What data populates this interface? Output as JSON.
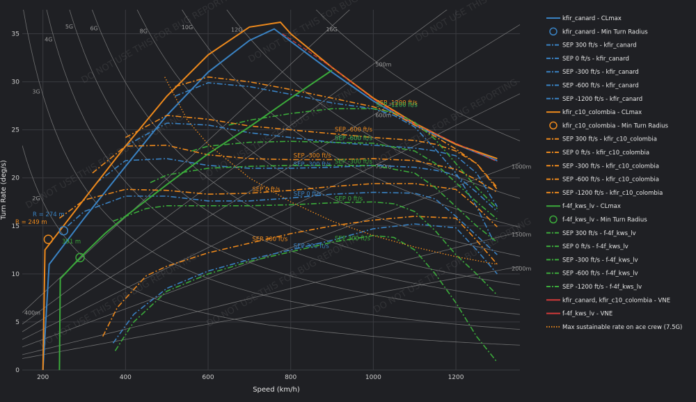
{
  "chart_data": {
    "type": "line",
    "xlabel": "Speed (km/h)",
    "ylabel": "Turn Rate (deg/s)",
    "xlim": [
      150,
      1355
    ],
    "ylim": [
      0,
      37.5
    ],
    "xticks": [
      200,
      400,
      600,
      800,
      1000,
      1200
    ],
    "yticks": [
      0,
      5,
      10,
      15,
      20,
      25,
      30,
      35
    ],
    "grid": true,
    "legend_position": "right",
    "watermark": "DO NOT USE THIS FOR BUG REPORTING",
    "g_lines": [
      {
        "label": "2G",
        "g": 2
      },
      {
        "label": "3G",
        "g": 3
      },
      {
        "label": "4G",
        "g": 4
      },
      {
        "label": "5G",
        "g": 5
      },
      {
        "label": "6G",
        "g": 6
      },
      {
        "label": "8G",
        "g": 8
      },
      {
        "label": "10G",
        "g": 10
      },
      {
        "label": "12G",
        "g": 12
      },
      {
        "label": "16G",
        "g": 16
      }
    ],
    "radius_lines": [
      {
        "label": "400m",
        "r": 400
      },
      {
        "label": "500m",
        "r": 500
      },
      {
        "label": "600m",
        "r": 600
      },
      {
        "label": "750m",
        "r": 750
      },
      {
        "label": "1000m",
        "r": 1000
      },
      {
        "label": "1500m",
        "r": 1500
      },
      {
        "label": "2000m",
        "r": 2000
      }
    ],
    "aircraft": [
      {
        "name": "kfir_canard",
        "color": "#3a83c4",
        "clmax": {
          "x": [
            200,
            215,
            300,
            400,
            500,
            600,
            700,
            760,
            800,
            900,
            1000,
            1100,
            1200,
            1300
          ],
          "y": [
            0,
            11.0,
            15.8,
            21.2,
            26.5,
            31.0,
            34.3,
            35.5,
            34.2,
            31.0,
            28.0,
            25.5,
            23.5,
            21.8
          ]
        },
        "min_turn": {
          "speed": 250,
          "rate": 14.5,
          "label": "R = 274 m"
        },
        "sep": [
          {
            "label": "SEP 300 ft/s",
            "x": [
              370,
              420,
              500,
              600,
              700,
              800,
              900,
              1000,
              1100,
              1200,
              1250,
              1300
            ],
            "y": [
              2.8,
              5.8,
              8.5,
              10.3,
              11.5,
              12.5,
              13.5,
              14.7,
              15.2,
              14.8,
              12.5,
              10.0
            ]
          },
          {
            "label": "SEP 0 ft/s",
            "x": [
              260,
              300,
              400,
              500,
              600,
              700,
              800,
              900,
              1000,
              1100,
              1150,
              1200,
              1250,
              1300
            ],
            "y": [
              15.0,
              16.5,
              18.1,
              18.1,
              17.6,
              17.6,
              17.9,
              18.3,
              18.5,
              18.4,
              17.8,
              16.0,
              14.0,
              12.0
            ]
          },
          {
            "label": "SEP -300 ft/s",
            "x": [
              330,
              400,
              500,
              600,
              700,
              800,
              900,
              1000,
              1100,
              1150,
              1200,
              1250,
              1300
            ],
            "y": [
              19.5,
              21.8,
              22.0,
              21.3,
              21.0,
              21.0,
              21.1,
              21.3,
              21.1,
              20.8,
              20.3,
              18.5,
              16.5
            ]
          },
          {
            "label": "SEP -600 ft/s",
            "x": [
              400,
              500,
              600,
              700,
              800,
              900,
              1000,
              1100,
              1150,
              1200,
              1250,
              1300
            ],
            "y": [
              23.3,
              25.7,
              25.5,
              24.7,
              24.2,
              23.7,
              23.4,
              23.1,
              22.8,
              22.3,
              20.5,
              17.0
            ]
          },
          {
            "label": "SEP -1200 ft/s",
            "x": [
              520,
              600,
              700,
              800,
              900,
              1000,
              1050,
              1100,
              1150,
              1200,
              1250,
              1290
            ],
            "y": [
              28.5,
              29.9,
              29.5,
              28.7,
              27.8,
              27.2,
              26.5,
              25.3,
              23.0,
              20.5,
              17.0,
              13.5
            ]
          }
        ]
      },
      {
        "name": "kfir_c10_colombia",
        "color": "#ef8a1c",
        "clmax": {
          "x": [
            200,
            205,
            300,
            400,
            500,
            600,
            700,
            775,
            800,
            900,
            1000,
            1100,
            1200,
            1300
          ],
          "y": [
            0,
            12.5,
            17.8,
            23.3,
            28.5,
            32.8,
            35.7,
            36.2,
            35.0,
            31.5,
            28.3,
            25.7,
            23.5,
            22.0
          ]
        },
        "min_turn": {
          "speed": 213,
          "rate": 13.6,
          "label": "R = 249 m"
        },
        "sep": [
          {
            "label": "SEP 300 ft/s",
            "x": [
              345,
              380,
              450,
              500,
              600,
              700,
              800,
              900,
              1000,
              1100,
              1200,
              1250,
              1300
            ],
            "y": [
              3.5,
              6.5,
              9.8,
              10.8,
              12.2,
              13.2,
              14.2,
              15.0,
              15.6,
              16.0,
              15.8,
              13.5,
              11.0
            ]
          },
          {
            "label": "SEP 0 ft/s",
            "x": [
              240,
              300,
              400,
              500,
              600,
              700,
              800,
              900,
              1000,
              1100,
              1200,
              1250,
              1300
            ],
            "y": [
              15.8,
              17.7,
              18.8,
              18.7,
              18.3,
              18.4,
              18.7,
              19.1,
              19.4,
              19.4,
              18.8,
              17.0,
              14.9
            ]
          },
          {
            "label": "SEP -300 ft/s",
            "x": [
              320,
              400,
              500,
              600,
              700,
              800,
              900,
              1000,
              1100,
              1200,
              1250,
              1300
            ],
            "y": [
              20.5,
              23.3,
              23.4,
              22.4,
              22.0,
              21.9,
              21.9,
              22.0,
              21.8,
              20.9,
              19.8,
              18.5
            ]
          },
          {
            "label": "SEP -600 ft/s",
            "x": [
              400,
              500,
              600,
              700,
              800,
              900,
              1000,
              1100,
              1150,
              1200,
              1250,
              1300
            ],
            "y": [
              24.2,
              26.5,
              26.1,
              25.4,
              25.0,
              24.6,
              24.2,
              23.9,
              23.5,
              22.8,
              21.5,
              18.8
            ]
          },
          {
            "label": "SEP -1200 ft/s",
            "x": [
              520,
              600,
              700,
              800,
              900,
              1000,
              1050,
              1100,
              1150,
              1200,
              1250,
              1300
            ],
            "y": [
              29.5,
              30.5,
              30.0,
              29.2,
              28.3,
              27.4,
              26.7,
              25.5,
              24.3,
              23.0,
              21.5,
              19.0
            ]
          }
        ]
      },
      {
        "name": "f-4f_kws_lv",
        "color": "#3bab3b",
        "clmax": {
          "x": [
            240,
            242,
            290,
            350,
            400,
            500,
            600,
            700,
            800,
            900
          ],
          "y": [
            0,
            9.5,
            11.7,
            14.2,
            16.0,
            19.3,
            22.5,
            25.3,
            28.3,
            31.2
          ]
        },
        "min_turn": {
          "speed": 290,
          "rate": 11.7,
          "label": "R = 391 m"
        },
        "sep": [
          {
            "label": "SEP 300 ft/s",
            "x": [
              375,
              420,
              500,
              600,
              700,
              800,
              900,
              1000,
              1050,
              1100,
              1150,
              1200,
              1250,
              1300
            ],
            "y": [
              2.0,
              5.0,
              8.2,
              10.0,
              11.3,
              12.3,
              13.3,
              14.0,
              13.8,
              12.5,
              10.0,
              7.0,
              3.5,
              0.8
            ]
          },
          {
            "label": "SEP 0 ft/s",
            "x": [
              370,
              450,
              500,
              600,
              700,
              800,
              900,
              1000,
              1050,
              1100,
              1150,
              1200,
              1250,
              1300
            ],
            "y": [
              15.5,
              16.8,
              17.1,
              17.1,
              17.1,
              17.2,
              17.4,
              17.5,
              17.3,
              16.5,
              14.5,
              12.0,
              10.0,
              7.8
            ]
          },
          {
            "label": "SEP -300 ft/s",
            "x": [
              460,
              500,
              600,
              700,
              800,
              900,
              1000,
              1100,
              1150,
              1200,
              1250,
              1300
            ],
            "y": [
              19.5,
              20.3,
              21.0,
              21.2,
              21.3,
              21.3,
              21.3,
              20.5,
              19.0,
              17.0,
              15.0,
              13.3
            ]
          },
          {
            "label": "SEP -600 ft/s",
            "x": [
              560,
              600,
              700,
              800,
              900,
              1000,
              1100,
              1150,
              1200,
              1250,
              1300
            ],
            "y": [
              22.8,
              23.3,
              23.7,
              23.8,
              23.7,
              23.6,
              22.8,
              21.5,
              19.5,
              17.5,
              15.7
            ]
          },
          {
            "label": "SEP -1200 ft/s",
            "x": [
              650,
              700,
              800,
              900,
              1000,
              1050,
              1100,
              1150,
              1200,
              1250,
              1300
            ],
            "y": [
              25.5,
              26.0,
              26.7,
              27.2,
              27.2,
              26.8,
              25.8,
              24.0,
              21.5,
              19.0,
              16.8
            ]
          }
        ]
      }
    ],
    "vne": [
      {
        "label": "kfir_canard, kfir_c10_colombia - VNE",
        "color": "#d43a3a"
      },
      {
        "label": "f-4f_kws_lv - VNE",
        "color": "#d43a3a"
      }
    ],
    "max_sustainable": {
      "label": "Max sustainable rate on ace crew (7.5G)",
      "color": "#ef8a1c",
      "x": [
        495,
        550,
        600,
        700,
        800,
        900,
        1000,
        1100,
        1200,
        1300
      ],
      "y": [
        30.5,
        26.0,
        23.5,
        20.0,
        17.5,
        15.5,
        14.0,
        12.8,
        11.8,
        11.0
      ]
    },
    "annotations": {
      "kfir_canard_R": "R = 274 m",
      "kfir_c10_R": "R = 249 m",
      "f4_R": "391 m"
    },
    "legend": [
      {
        "label": "kfir_canard - CLmax",
        "color": "#3a83c4",
        "style": "solid"
      },
      {
        "label": "kfir_canard - Min Turn Radius",
        "color": "#3a83c4",
        "style": "circle"
      },
      {
        "label": "SEP 300 ft/s - kfir_canard",
        "color": "#3a83c4",
        "style": "dashdot"
      },
      {
        "label": "SEP 0 ft/s - kfir_canard",
        "color": "#3a83c4",
        "style": "dashdot"
      },
      {
        "label": "SEP -300 ft/s - kfir_canard",
        "color": "#3a83c4",
        "style": "dashdot"
      },
      {
        "label": "SEP -600 ft/s - kfir_canard",
        "color": "#3a83c4",
        "style": "dashdot"
      },
      {
        "label": "SEP -1200 ft/s - kfir_canard",
        "color": "#3a83c4",
        "style": "dashdot"
      },
      {
        "label": "kfir_c10_colombia - CLmax",
        "color": "#ef8a1c",
        "style": "solid"
      },
      {
        "label": "kfir_c10_colombia - Min Turn Radius",
        "color": "#ef8a1c",
        "style": "circle"
      },
      {
        "label": "SEP 300 ft/s - kfir_c10_colombia",
        "color": "#ef8a1c",
        "style": "dashdot"
      },
      {
        "label": "SEP 0 ft/s - kfir_c10_colombia",
        "color": "#ef8a1c",
        "style": "dashdot"
      },
      {
        "label": "SEP -300 ft/s - kfir_c10_colombia",
        "color": "#ef8a1c",
        "style": "dashdot"
      },
      {
        "label": "SEP -600 ft/s - kfir_c10_colombia",
        "color": "#ef8a1c",
        "style": "dashdot"
      },
      {
        "label": "SEP -1200 ft/s - kfir_c10_colombia",
        "color": "#ef8a1c",
        "style": "dashdot"
      },
      {
        "label": "f-4f_kws_lv - CLmax",
        "color": "#3bab3b",
        "style": "solid"
      },
      {
        "label": "f-4f_kws_lv - Min Turn Radius",
        "color": "#3bab3b",
        "style": "circle"
      },
      {
        "label": "SEP 300 ft/s - f-4f_kws_lv",
        "color": "#3bab3b",
        "style": "dashdot"
      },
      {
        "label": "SEP 0 ft/s - f-4f_kws_lv",
        "color": "#3bab3b",
        "style": "dashdot"
      },
      {
        "label": "SEP -300 ft/s - f-4f_kws_lv",
        "color": "#3bab3b",
        "style": "dashdot"
      },
      {
        "label": "SEP -600 ft/s - f-4f_kws_lv",
        "color": "#3bab3b",
        "style": "dashdot"
      },
      {
        "label": "SEP -1200 ft/s - f-4f_kws_lv",
        "color": "#3bab3b",
        "style": "dashdot"
      },
      {
        "label": "kfir_canard, kfir_c10_colombia - VNE",
        "color": "#d43a3a",
        "style": "solid"
      },
      {
        "label": "f-4f_kws_lv - VNE",
        "color": "#d43a3a",
        "style": "solid"
      },
      {
        "label": "Max sustainable rate on ace crew (7.5G)",
        "color": "#ef8a1c",
        "style": "dotted"
      }
    ]
  }
}
